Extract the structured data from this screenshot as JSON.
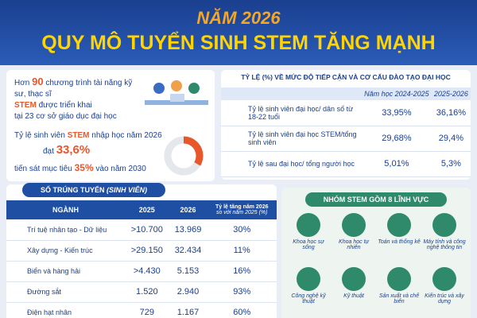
{
  "header": {
    "year_title": "NĂM 2026",
    "title": "QUY MÔ TUYỂN SINH STEM TĂNG MẠNH"
  },
  "summary": {
    "line1": [
      "Hơn",
      "90",
      "chương trình tài năng kỹ sư, thạc sĩ"
    ],
    "line2": [
      "STEM",
      "được triển khai"
    ],
    "line3": "tại 23 cơ sở giáo dục đại học",
    "rate_line": [
      "Tỷ lệ sinh viên",
      "STEM",
      "nhập học năm 2026"
    ],
    "reach": "đạt",
    "share": {
      "value": 33.6,
      "label": "33,6%"
    },
    "target_line": [
      "tiến sát mục tiêu",
      "35%",
      "vào năm 2030"
    ]
  },
  "access_table": {
    "title": "TỶ LỆ (%) VỀ MỨC ĐỘ TIẾP CẬN VÀ CƠ CẤU ĐÀO TẠO ĐẠI HỌC",
    "columns": [
      "Năm học 2024-2025",
      "2025-2026"
    ],
    "rows": [
      [
        "Tỷ lệ sinh viên đại học/ dân số từ 18-22 tuổi",
        "33,95%",
        "36,16%"
      ],
      [
        "Tỷ lệ sinh viên đại học STEM/tổng sinh viên",
        "29,68%",
        "29,4%"
      ],
      [
        "Tỷ lệ sau đại học/ tổng người học",
        "5,01%",
        "5,3%"
      ]
    ]
  },
  "admissions_table": {
    "title": "SỐ TRÚNG TUYỂN",
    "title_unit": "(SINH VIÊN)",
    "columns": [
      "NGÀNH",
      "2025",
      "2026",
      "Tỷ lệ tăng năm 2026",
      "so với năm 2025 (%)"
    ],
    "rows": [
      [
        "Trí tuệ nhân tạo - Dữ liệu",
        ">10.700",
        "13.969",
        "30%"
      ],
      [
        "Xây dựng - Kiến trúc",
        ">29.150",
        "32.434",
        "11%"
      ],
      [
        "Biển và hàng hải",
        ">4.430",
        "5.153",
        "16%"
      ],
      [
        "Đường sắt",
        "1.520",
        "2.940",
        "93%"
      ],
      [
        "Điện hạt nhân",
        "729",
        "1.167",
        "60%"
      ]
    ]
  },
  "stem_groups": {
    "title": "NHÓM STEM GỒM 8 LĨNH VỰC",
    "items": [
      "Khoa học sự sống",
      "Khoa học tự nhiên",
      "Toán và thống kê",
      "Máy tính và công nghệ thông tin",
      "Công nghệ kỹ thuật",
      "Kỹ thuật",
      "Sản xuất và chế biến",
      "Kiến trúc và xây dựng"
    ]
  }
}
